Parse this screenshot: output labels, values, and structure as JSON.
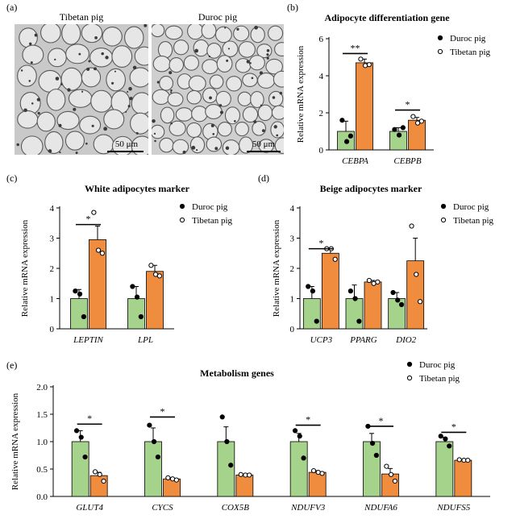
{
  "colors": {
    "green": "#a6d38b",
    "orange": "#f08c3d",
    "axis": "#000000"
  },
  "panels": {
    "a": {
      "letter": "(a)",
      "left_title": "Tibetan pig",
      "right_title": "Duroc pig",
      "scale_left": "50 μm",
      "scale_right": "50 μm"
    },
    "b": {
      "letter": "(b)"
    },
    "c": {
      "letter": "(c)"
    },
    "d": {
      "letter": "(d)"
    },
    "e": {
      "letter": "(e)"
    }
  },
  "chart_data": [
    {
      "id": "b",
      "type": "bar",
      "title": "Adipocyte differentiation gene",
      "ylabel": "Relative mRNA expression",
      "ylim": [
        0,
        6
      ],
      "yticks": [
        0,
        2,
        4,
        6
      ],
      "categories": [
        "CEBPA",
        "CEBPB"
      ],
      "legend": [
        "Duroc pig",
        "Tibetan pig"
      ],
      "legend_position": "top-right",
      "series": [
        {
          "name": "Duroc pig",
          "values": [
            1.0,
            1.0
          ],
          "errors": [
            0.55,
            0.2
          ],
          "points": [
            [
              1.6,
              0.45,
              0.75
            ],
            [
              1.1,
              0.8,
              1.2
            ]
          ]
        },
        {
          "name": "Tibetan pig",
          "values": [
            4.7,
            1.6
          ],
          "errors": [
            0.2,
            0.15
          ],
          "points": [
            [
              4.9,
              4.55,
              4.6
            ],
            [
              1.8,
              1.45,
              1.55
            ]
          ]
        }
      ],
      "significance": [
        {
          "category": 0,
          "label": "**",
          "y": 5.2
        },
        {
          "category": 1,
          "label": "*",
          "y": 2.15
        }
      ]
    },
    {
      "id": "c",
      "type": "bar",
      "title": "White adipocytes marker",
      "ylabel": "Relative mRNA expression",
      "ylim": [
        0,
        4
      ],
      "yticks": [
        0,
        1,
        2,
        3,
        4
      ],
      "categories": [
        "LEPTIN",
        "LPL"
      ],
      "legend": [
        "Duroc pig",
        "Tibetan pig"
      ],
      "legend_position": "top-right",
      "series": [
        {
          "name": "Duroc pig",
          "values": [
            1.0,
            1.0
          ],
          "errors": [
            0.3,
            0.4
          ],
          "points": [
            [
              1.25,
              1.15,
              0.4
            ],
            [
              1.4,
              1.05,
              0.4
            ]
          ]
        },
        {
          "name": "Tibetan pig",
          "values": [
            2.95,
            1.9
          ],
          "errors": [
            0.45,
            0.2
          ],
          "points": [
            [
              3.85,
              2.6,
              2.5
            ],
            [
              2.1,
              1.8,
              1.75
            ]
          ]
        }
      ],
      "significance": [
        {
          "category": 0,
          "label": "*",
          "y": 3.45
        }
      ]
    },
    {
      "id": "d",
      "type": "bar",
      "title": "Beige adipocytes marker",
      "ylabel": "Relative mRNA expression",
      "ylim": [
        0,
        4
      ],
      "yticks": [
        0,
        1,
        2,
        3,
        4
      ],
      "categories": [
        "UCP3",
        "PPARG",
        "DIO2"
      ],
      "legend": [
        "Duroc pig",
        "Tibetan pig"
      ],
      "legend_position": "top-right",
      "series": [
        {
          "name": "Duroc pig",
          "values": [
            1.0,
            1.0,
            1.0
          ],
          "errors": [
            0.4,
            0.45,
            0.2
          ],
          "points": [
            [
              1.4,
              1.25,
              0.25
            ],
            [
              1.25,
              1.0,
              0.25
            ],
            [
              1.2,
              0.95,
              0.8
            ]
          ]
        },
        {
          "name": "Tibetan pig",
          "values": [
            2.5,
            1.55,
            2.25
          ],
          "errors": [
            0.15,
            0.05,
            0.75
          ],
          "points": [
            [
              2.65,
              2.65,
              2.3
            ],
            [
              1.6,
              1.5,
              1.55
            ],
            [
              3.4,
              1.8,
              0.9
            ]
          ]
        }
      ],
      "significance": [
        {
          "category": 0,
          "label": "*",
          "y": 2.65
        }
      ]
    },
    {
      "id": "e",
      "type": "bar",
      "title": "Metabolism genes",
      "ylabel": "Relative mRNA expression",
      "ylim": [
        0,
        2.0
      ],
      "yticks": [
        0.0,
        0.5,
        1.0,
        1.5,
        2.0
      ],
      "categories": [
        "GLUT4",
        "CYCS",
        "COX5B",
        "NDUFV3",
        "NDUFA6",
        "NDUFS5"
      ],
      "legend": [
        "Duroc pig",
        "Tibetan pig"
      ],
      "legend_position": "top-right",
      "series": [
        {
          "name": "Duroc pig",
          "values": [
            1.0,
            1.0,
            1.0,
            1.0,
            1.0,
            1.0
          ],
          "errors": [
            0.2,
            0.25,
            0.27,
            0.15,
            0.15,
            0.08
          ],
          "points": [
            [
              1.2,
              1.08,
              0.72
            ],
            [
              1.3,
              1.0,
              0.72
            ],
            [
              1.45,
              1.0,
              0.57
            ],
            [
              1.2,
              1.1,
              0.7
            ],
            [
              1.28,
              0.97,
              0.75
            ],
            [
              1.1,
              1.05,
              0.92
            ]
          ]
        },
        {
          "name": "Tibetan pig",
          "values": [
            0.38,
            0.32,
            0.39,
            0.44,
            0.41,
            0.66
          ],
          "errors": [
            0.06,
            0.02,
            0.01,
            0.03,
            0.1,
            0.01
          ],
          "points": [
            [
              0.45,
              0.4,
              0.28
            ],
            [
              0.34,
              0.32,
              0.3
            ],
            [
              0.4,
              0.39,
              0.39
            ],
            [
              0.47,
              0.44,
              0.42
            ],
            [
              0.55,
              0.4,
              0.28
            ],
            [
              0.67,
              0.66,
              0.66
            ]
          ]
        }
      ],
      "significance": [
        {
          "category": 0,
          "label": "*",
          "y": 1.32
        },
        {
          "category": 1,
          "label": "*",
          "y": 1.45
        },
        {
          "category": 3,
          "label": "*",
          "y": 1.3
        },
        {
          "category": 4,
          "label": "*",
          "y": 1.28
        },
        {
          "category": 5,
          "label": "*",
          "y": 1.17
        }
      ]
    }
  ]
}
